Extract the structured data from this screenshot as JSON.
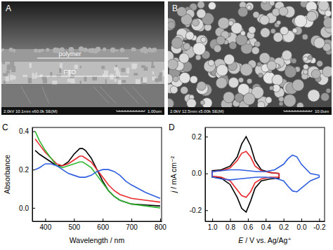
{
  "images": [
    {
      "panel": "A",
      "labels": [
        "polymer",
        "FTO"
      ],
      "info": "2.0kV 10.1mm x60.0k SE(M)",
      "scale_bar": "1.00um"
    },
    {
      "panel": "B",
      "labels": [],
      "info": "2.0kV 12.5mm x5.00k SE(M)",
      "scale_bar": "10.0um"
    }
  ],
  "chart_data": [
    {
      "type": "line",
      "panel": "C",
      "x_label": "Wavelength / nm",
      "y_label": "Absorbance",
      "xlim": [
        355,
        805
      ],
      "xticks": [
        400,
        500,
        600,
        700,
        800
      ],
      "ylim": [
        -0.07,
        0.42
      ],
      "yticks": [
        {
          "value": 0,
          "label": "0.0"
        },
        {
          "value": 0.2,
          "label": "0.2"
        },
        {
          "value": 0.4,
          "label": "0.4"
        }
      ],
      "x": [
        365,
        380,
        400,
        420,
        440,
        460,
        480,
        500,
        520,
        530,
        540,
        560,
        580,
        600,
        620,
        640,
        660,
        680,
        700,
        750,
        800
      ],
      "series": [
        {
          "color": "#000000",
          "values": [
            0.3,
            0.28,
            0.26,
            0.24,
            0.22,
            0.22,
            0.24,
            0.28,
            0.31,
            0.31,
            0.3,
            0.26,
            0.2,
            0.14,
            0.09,
            0.06,
            0.04,
            0.03,
            0.02,
            0.015,
            0.01
          ]
        },
        {
          "color": "#e8292b",
          "values": [
            0.36,
            0.33,
            0.29,
            0.26,
            0.23,
            0.22,
            0.23,
            0.25,
            0.27,
            0.27,
            0.26,
            0.24,
            0.2,
            0.16,
            0.12,
            0.09,
            0.07,
            0.06,
            0.05,
            0.04,
            0.03
          ]
        },
        {
          "color": "#2db82d",
          "values": [
            0.4,
            0.35,
            0.3,
            0.26,
            0.22,
            0.21,
            0.22,
            0.23,
            0.24,
            0.24,
            0.23,
            0.21,
            0.17,
            0.13,
            0.09,
            0.06,
            0.04,
            0.03,
            0.02,
            0.01,
            0.0
          ]
        },
        {
          "color": "#2f5fe0",
          "values": [
            0.2,
            0.21,
            0.23,
            0.23,
            0.22,
            0.2,
            0.18,
            0.17,
            0.16,
            0.16,
            0.16,
            0.17,
            0.19,
            0.2,
            0.2,
            0.19,
            0.17,
            0.14,
            0.12,
            0.08,
            0.05
          ]
        }
      ]
    },
    {
      "type": "line",
      "panel": "D",
      "x_label": "E / V vs. Ag/Ag⁺",
      "y_label": "j / mA cm⁻²",
      "xlim": [
        1.08,
        -0.26
      ],
      "xticks": [
        {
          "value": 1,
          "label": "1.0"
        },
        0.8,
        0.6,
        0.4,
        0.2,
        {
          "value": 0,
          "label": "0.0"
        },
        -0.2
      ],
      "ylim": [
        -0.26,
        0.25
      ],
      "yticks": [
        -0.2,
        {
          "value": 0,
          "label": "0.0"
        },
        0.2
      ],
      "series": [
        {
          "color": "#000000",
          "x": [
            0.25,
            0.35,
            0.45,
            0.52,
            0.57,
            0.62,
            0.67,
            0.72,
            0.8,
            0.9,
            1.0,
            1.0,
            0.9,
            0.8,
            0.72,
            0.67,
            0.62,
            0.57,
            0.52,
            0.45,
            0.35,
            0.25,
            0.25
          ],
          "values": [
            0.0,
            0.005,
            0.02,
            0.07,
            0.15,
            0.2,
            0.16,
            0.09,
            0.04,
            0.02,
            0.015,
            -0.02,
            -0.025,
            -0.06,
            -0.13,
            -0.19,
            -0.21,
            -0.15,
            -0.08,
            -0.04,
            -0.03,
            -0.025,
            0.0
          ]
        },
        {
          "color": "#e8292b",
          "x": [
            0.25,
            0.35,
            0.45,
            0.52,
            0.57,
            0.62,
            0.67,
            0.72,
            0.8,
            0.9,
            1.0,
            1.0,
            0.9,
            0.8,
            0.72,
            0.67,
            0.62,
            0.57,
            0.52,
            0.45,
            0.35,
            0.25,
            0.25
          ],
          "values": [
            0.0,
            0.005,
            0.015,
            0.04,
            0.09,
            0.12,
            0.11,
            0.07,
            0.03,
            0.015,
            0.01,
            -0.015,
            -0.02,
            -0.04,
            -0.09,
            -0.12,
            -0.13,
            -0.1,
            -0.05,
            -0.03,
            -0.02,
            -0.02,
            0.0
          ]
        },
        {
          "color": "#2f5fe0",
          "x": [
            -0.2,
            -0.1,
            0.0,
            0.05,
            0.1,
            0.15,
            0.2,
            0.3,
            0.4,
            0.5,
            0.6,
            0.7,
            0.8,
            0.9,
            1.0,
            1.0,
            0.9,
            0.8,
            0.7,
            0.6,
            0.5,
            0.4,
            0.3,
            0.2,
            0.15,
            0.1,
            0.05,
            0.0,
            -0.1,
            -0.2,
            -0.2
          ],
          "values": [
            -0.01,
            0.0,
            0.05,
            0.09,
            0.1,
            0.08,
            0.05,
            0.02,
            0.01,
            0.01,
            0.015,
            0.02,
            0.02,
            0.015,
            0.01,
            -0.02,
            -0.03,
            -0.035,
            -0.03,
            -0.025,
            -0.02,
            -0.02,
            -0.025,
            -0.04,
            -0.07,
            -0.095,
            -0.1,
            -0.08,
            -0.04,
            -0.02,
            -0.01
          ]
        }
      ]
    }
  ]
}
